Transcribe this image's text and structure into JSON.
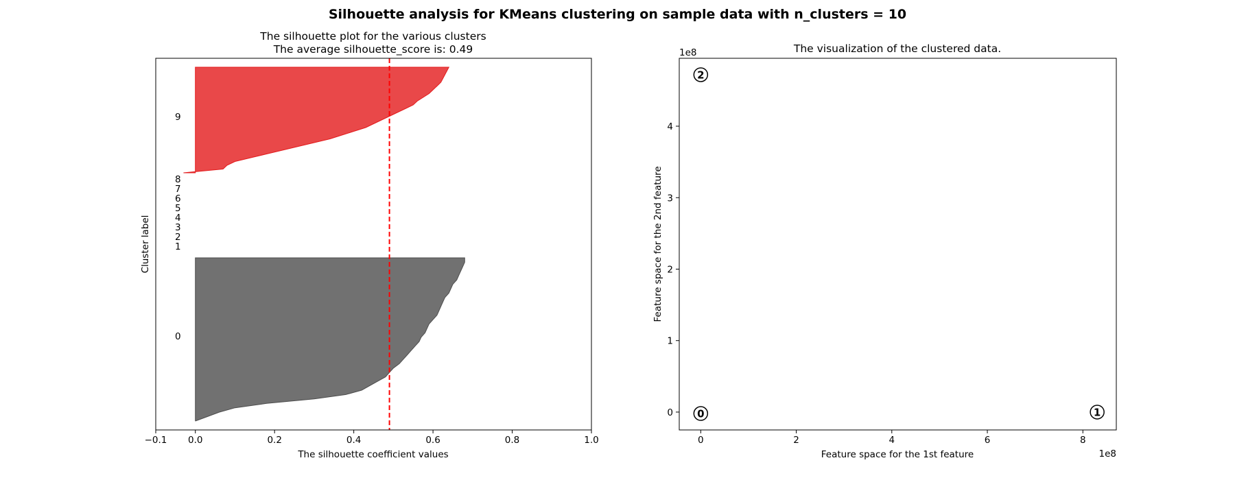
{
  "figure": {
    "title": "Silhouette analysis for KMeans clustering on sample data with n_clusters = 10"
  },
  "chart_data": [
    {
      "type": "area",
      "title": "The silhouette plot for the various clusters",
      "subtitle": "The average silhouette_score is: 0.49",
      "xlabel": "The silhouette coefficient values",
      "ylabel": "Cluster label",
      "xlim": [
        -0.1,
        1.0
      ],
      "xticks": [
        "−0.1",
        "0.0",
        "0.2",
        "0.4",
        "0.6",
        "0.8",
        "1.0"
      ],
      "xtick_values": [
        -0.1,
        0.0,
        0.2,
        0.4,
        0.6,
        0.8,
        1.0
      ],
      "average_score": 0.49,
      "average_line_color": "#ff0000",
      "cluster_labels": [
        "0",
        "1",
        "2",
        "3",
        "4",
        "5",
        "6",
        "7",
        "8",
        "9"
      ],
      "series": [
        {
          "name": "0",
          "color": "#4d4d4d",
          "values": [
            0.68,
            0.68,
            0.675,
            0.67,
            0.665,
            0.66,
            0.65,
            0.645,
            0.64,
            0.63,
            0.625,
            0.62,
            0.615,
            0.61,
            0.6,
            0.59,
            0.585,
            0.58,
            0.57,
            0.565,
            0.555,
            0.545,
            0.535,
            0.525,
            0.515,
            0.5,
            0.49,
            0.48,
            0.46,
            0.44,
            0.42,
            0.38,
            0.3,
            0.18,
            0.1,
            0.06,
            0.03,
            0.0
          ]
        },
        {
          "name": "1",
          "values": []
        },
        {
          "name": "2",
          "values": []
        },
        {
          "name": "3",
          "values": []
        },
        {
          "name": "4",
          "values": []
        },
        {
          "name": "5",
          "values": []
        },
        {
          "name": "6",
          "values": []
        },
        {
          "name": "7",
          "values": []
        },
        {
          "name": "8",
          "values": []
        },
        {
          "name": "9",
          "color": "#e31a1c",
          "values": [
            0.64,
            0.635,
            0.63,
            0.625,
            0.62,
            0.61,
            0.6,
            0.59,
            0.575,
            0.56,
            0.55,
            0.53,
            0.51,
            0.49,
            0.47,
            0.45,
            0.43,
            0.4,
            0.37,
            0.34,
            0.3,
            0.26,
            0.22,
            0.18,
            0.14,
            0.1,
            0.08,
            0.07,
            -0.03
          ]
        }
      ]
    },
    {
      "type": "scatter",
      "title": "The visualization of the clustered data.",
      "xlabel": "Feature space for the 1st feature",
      "ylabel": "Feature space for the 2nd feature",
      "x_offset_text": "1e8",
      "y_offset_text": "1e8",
      "xlim": [
        -0.45,
        8.7
      ],
      "ylim": [
        -0.25,
        4.95
      ],
      "xticks": [
        "0",
        "2",
        "4",
        "6",
        "8"
      ],
      "xtick_values": [
        0,
        2,
        4,
        6,
        8
      ],
      "yticks": [
        "0",
        "1",
        "2",
        "3",
        "4"
      ],
      "ytick_values": [
        0,
        1,
        2,
        3,
        4
      ],
      "centers": [
        {
          "label": "2",
          "x": 0.0,
          "y": 4.72
        },
        {
          "label": "1",
          "x": 8.3,
          "y": 0.0
        },
        {
          "label": "0",
          "x": 0.0,
          "y": -0.02
        }
      ]
    }
  ]
}
